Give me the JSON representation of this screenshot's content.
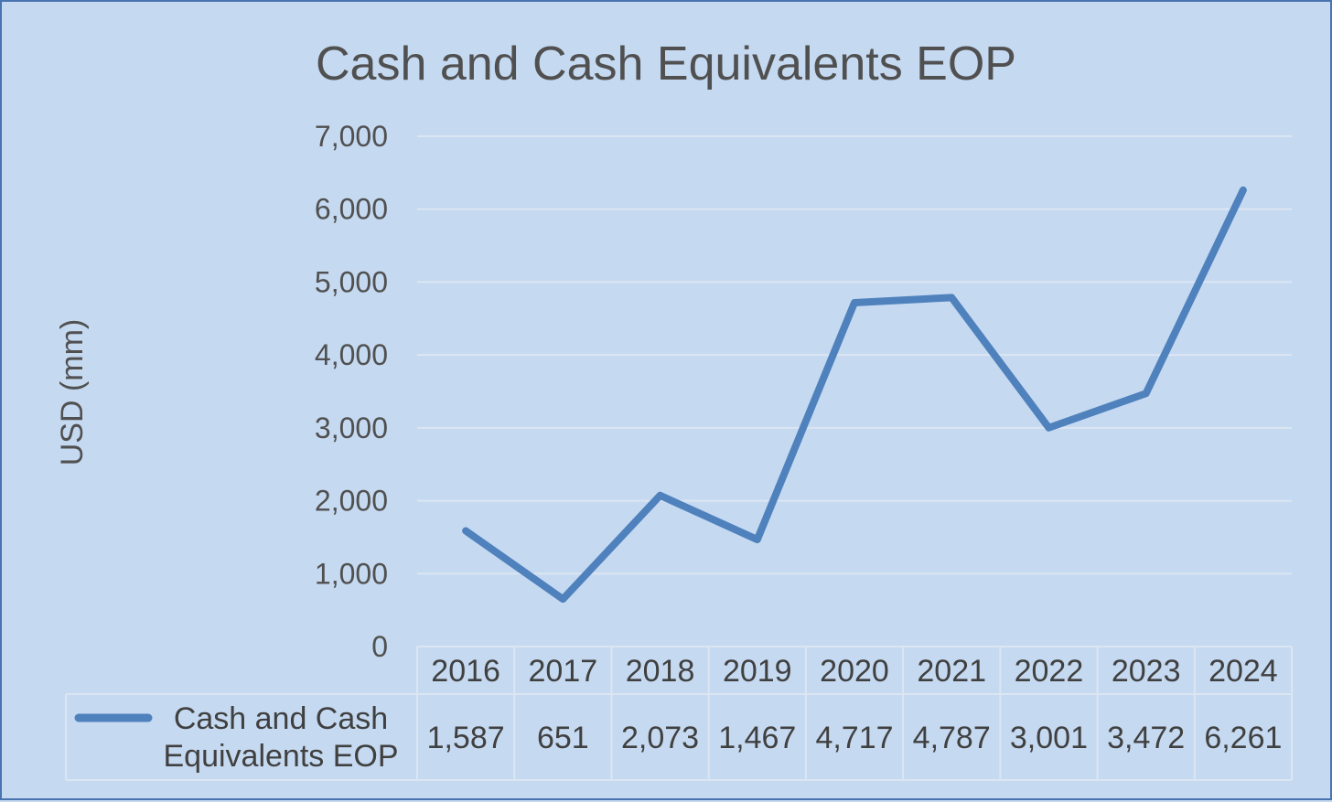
{
  "chart_data": {
    "type": "line",
    "title": "Cash and Cash Equivalents EOP",
    "ylabel": "USD (mm)",
    "xlabel": "",
    "ylim": [
      0,
      7000
    ],
    "yticks": [
      0,
      1000,
      2000,
      3000,
      4000,
      5000,
      6000,
      7000
    ],
    "ytick_labels": [
      "0",
      "1,000",
      "2,000",
      "3,000",
      "4,000",
      "5,000",
      "6,000",
      "7,000"
    ],
    "categories": [
      "2016",
      "2017",
      "2018",
      "2019",
      "2020",
      "2021",
      "2022",
      "2023",
      "2024"
    ],
    "grid": true,
    "legend": "data-table",
    "series": [
      {
        "name": "Cash and Cash Equivalents EOP",
        "legend_lines": [
          "Cash and Cash",
          "Equivalents EOP"
        ],
        "values": [
          1587,
          651,
          2073,
          1467,
          4717,
          4787,
          3001,
          3472,
          6261
        ],
        "value_labels": [
          "1,587",
          "651",
          "2,073",
          "1,467",
          "4,717",
          "4,787",
          "3,001",
          "3,472",
          "6,261"
        ],
        "color": "#4f81bd"
      }
    ]
  },
  "colors": {
    "background": "#c5d9f1",
    "border": "#4a74b0",
    "gridline": "#dce6f2",
    "line": "#4f81bd",
    "text": "#505050"
  }
}
